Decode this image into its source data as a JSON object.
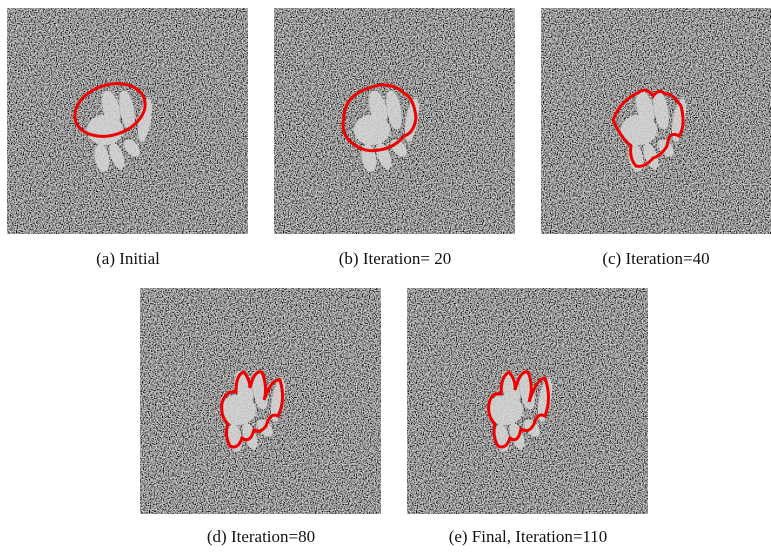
{
  "panels": [
    {
      "caption": "(a) Initial"
    },
    {
      "caption": "(b) Iteration= 20"
    },
    {
      "caption": "(c) Iteration=40"
    },
    {
      "caption": "(d) Iteration=80"
    },
    {
      "caption": "(e) Final, Iteration=110"
    }
  ]
}
